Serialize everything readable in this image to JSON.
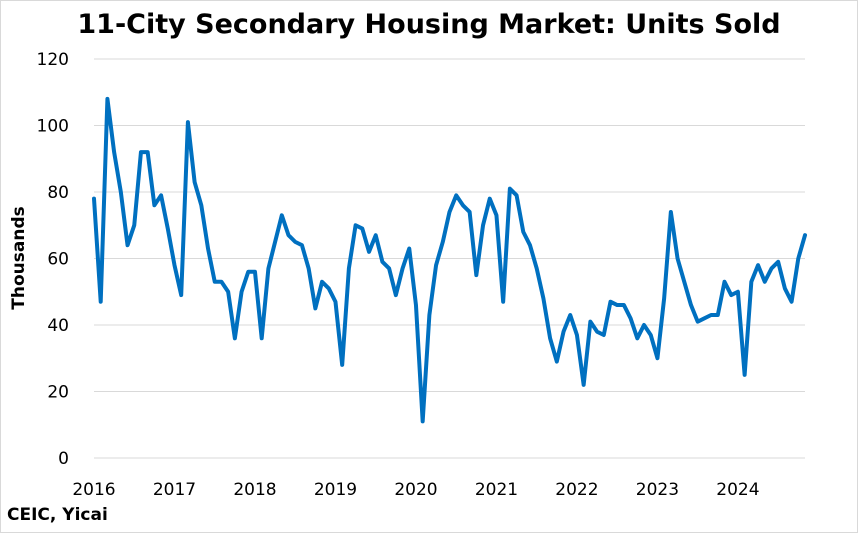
{
  "chart_data": {
    "type": "line",
    "title": "11-City Secondary Housing Market: Units Sold",
    "ylabel": "Thousands",
    "xlabel": "",
    "source": "CEIC, Yicai",
    "ylim": [
      0,
      120
    ],
    "yticks": [
      "0",
      "20",
      "40",
      "60",
      "80",
      "100",
      "120"
    ],
    "x_tick_labels": [
      "2016",
      "2017",
      "2018",
      "2019",
      "2020",
      "2021",
      "2022",
      "2023",
      "2024"
    ],
    "x_start_year": 2016,
    "grid": true,
    "legend": "none",
    "series": [
      {
        "color": "#0070C0",
        "values": [
          78,
          47,
          108,
          92,
          80,
          64,
          70,
          92,
          92,
          76,
          79,
          69,
          58,
          49,
          101,
          83,
          76,
          63,
          53,
          53,
          50,
          36,
          50,
          56,
          56,
          36,
          57,
          65,
          73,
          67,
          65,
          64,
          57,
          45,
          53,
          51,
          47,
          28,
          57,
          70,
          69,
          62,
          67,
          59,
          57,
          49,
          57,
          63,
          46,
          11,
          43,
          58,
          65,
          74,
          79,
          76,
          74,
          55,
          70,
          78,
          73,
          47,
          81,
          79,
          68,
          64,
          57,
          48,
          36,
          29,
          38,
          43,
          37,
          22,
          41,
          38,
          37,
          47,
          46,
          46,
          42,
          36,
          40,
          37,
          30,
          48,
          74,
          60,
          53,
          46,
          41,
          42,
          43,
          43,
          53,
          49,
          50,
          25,
          53,
          58,
          53,
          57,
          59,
          51,
          47,
          60,
          67
        ]
      }
    ]
  }
}
